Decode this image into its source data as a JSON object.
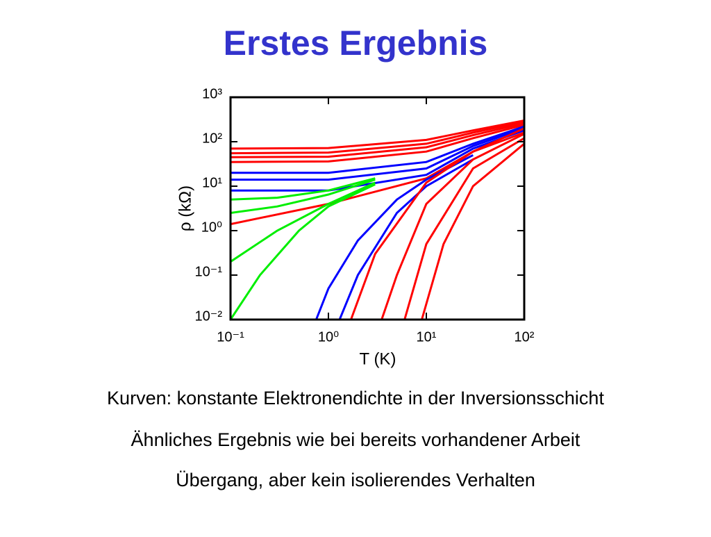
{
  "slide": {
    "title": "Erstes Ergebnis",
    "lines": [
      "Kurven: konstante Elektronendichte in der Inversionsschicht",
      "Ähnliches Ergebnis wie bei bereits vorhandener Arbeit",
      "Übergang, aber kein isolierendes Verhalten"
    ]
  },
  "chart_data": {
    "type": "line",
    "x_label": "T (K)",
    "y_label": "ρ (kΩ)",
    "log_x": true,
    "log_y": true,
    "xlim": [
      0.1,
      100
    ],
    "ylim": [
      0.01,
      1000
    ],
    "xticks": [
      {
        "value": 0.1,
        "label": "10⁻¹"
      },
      {
        "value": 1,
        "label": "10⁰"
      },
      {
        "value": 10,
        "label": "10¹"
      },
      {
        "value": 100,
        "label": "10²"
      }
    ],
    "yticks": [
      {
        "value": 0.01,
        "label": "10⁻²"
      },
      {
        "value": 0.1,
        "label": "10⁻¹"
      },
      {
        "value": 1,
        "label": "10⁰"
      },
      {
        "value": 10,
        "label": "10¹"
      },
      {
        "value": 100,
        "label": "10²"
      },
      {
        "value": 1000,
        "label": "10³"
      }
    ],
    "series": [
      {
        "color": "#ff0000",
        "x": [
          0.1,
          1,
          10,
          30,
          100
        ],
        "values": [
          70,
          72,
          110,
          180,
          300
        ]
      },
      {
        "color": "#ff0000",
        "x": [
          0.1,
          1,
          10,
          30,
          100
        ],
        "values": [
          55,
          57,
          90,
          160,
          280
        ]
      },
      {
        "color": "#ff0000",
        "x": [
          0.1,
          1,
          10,
          30,
          100
        ],
        "values": [
          45,
          46,
          75,
          140,
          260
        ]
      },
      {
        "color": "#ff0000",
        "x": [
          0.1,
          1,
          10,
          30,
          100
        ],
        "values": [
          35,
          36,
          60,
          120,
          240
        ]
      },
      {
        "color": "#0000ff",
        "x": [
          0.1,
          1,
          10,
          30,
          100
        ],
        "values": [
          20,
          20,
          35,
          90,
          220
        ]
      },
      {
        "color": "#0000ff",
        "x": [
          0.1,
          1,
          10,
          30,
          100
        ],
        "values": [
          14,
          14,
          25,
          80,
          200
        ]
      },
      {
        "color": "#0000ff",
        "x": [
          0.1,
          1,
          10,
          30,
          100
        ],
        "values": [
          8,
          8,
          18,
          70,
          180
        ]
      },
      {
        "color": "#ff0000",
        "x": [
          0.1,
          1,
          10,
          30,
          100
        ],
        "values": [
          1.4,
          4,
          15,
          60,
          160
        ]
      },
      {
        "color": "#00ee00",
        "x": [
          0.1,
          0.3,
          1,
          3
        ],
        "values": [
          5,
          5.5,
          8,
          15
        ]
      },
      {
        "color": "#00ee00",
        "x": [
          0.1,
          0.3,
          1,
          3
        ],
        "values": [
          2.5,
          3.5,
          6.5,
          14
        ]
      },
      {
        "color": "#00ee00",
        "x": [
          0.1,
          0.3,
          1,
          3
        ],
        "values": [
          0.2,
          1,
          4,
          12
        ]
      },
      {
        "color": "#00ee00",
        "x": [
          0.1,
          0.2,
          0.5,
          1,
          3
        ],
        "values": [
          0.01,
          0.1,
          1,
          3.5,
          11
        ]
      },
      {
        "color": "#0000ff",
        "x": [
          0.75,
          1,
          2,
          5,
          10,
          30
        ],
        "values": [
          0.01,
          0.05,
          0.6,
          5,
          14,
          50
        ]
      },
      {
        "color": "#0000ff",
        "x": [
          1.3,
          2,
          5,
          10,
          30
        ],
        "values": [
          0.01,
          0.1,
          2.5,
          10,
          40
        ]
      },
      {
        "color": "#ff0000",
        "x": [
          1.7,
          3,
          10,
          30,
          100
        ],
        "values": [
          0.01,
          0.3,
          12,
          60,
          200
        ]
      },
      {
        "color": "#ff0000",
        "x": [
          3.5,
          5,
          10,
          30,
          100
        ],
        "values": [
          0.01,
          0.1,
          4,
          40,
          150
        ]
      },
      {
        "color": "#ff0000",
        "x": [
          6,
          10,
          30,
          100
        ],
        "values": [
          0.01,
          0.5,
          25,
          120
        ]
      },
      {
        "color": "#ff0000",
        "x": [
          9,
          15,
          30,
          100
        ],
        "values": [
          0.01,
          0.5,
          10,
          90
        ]
      }
    ]
  }
}
